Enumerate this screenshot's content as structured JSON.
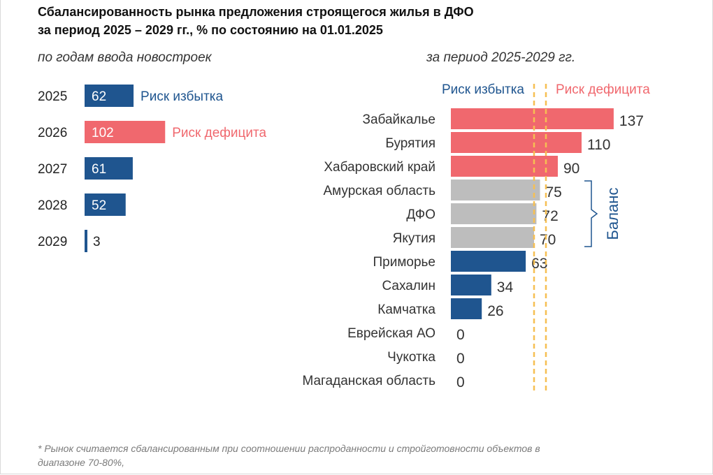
{
  "title_line1": "Сбалансированность рынка предложения строящегося жилья в ДФО",
  "title_line2": "за период 2025 – 2029 гг., % по состоянию на 01.01.2025",
  "left_subtitle": "по годам ввода новостроек",
  "right_subtitle": "за период 2025-2029 гг.",
  "footnote_line1": "* Рынок считается сбалансированным при соотношении распроданности и стройготовности объектов в",
  "footnote_line2": "диапазоне 70-80%,",
  "colors": {
    "surplus": "#1f558f",
    "deficit": "#f0686e",
    "balance": "#bdbdbd",
    "threshold": "#f6bf52"
  },
  "chart_data": [
    {
      "type": "bar",
      "orientation": "horizontal",
      "title": "по годам ввода новостроек",
      "categories": [
        "2025",
        "2026",
        "2027",
        "2028",
        "2029"
      ],
      "values": [
        62,
        102,
        61,
        52,
        3
      ],
      "status": [
        "surplus",
        "deficit",
        "surplus",
        "surplus",
        "surplus"
      ],
      "annotations": [
        {
          "category": "2025",
          "text": "Риск  избытка",
          "color": "#1f558f"
        },
        {
          "category": "2026",
          "text": "Риск дефицита",
          "color": "#f0686e"
        }
      ]
    },
    {
      "type": "bar",
      "orientation": "horizontal",
      "title": "за период 2025-2029 гг.",
      "categories": [
        "Забайкалье",
        "Бурятия",
        "Хабаровский край",
        "Амурская область",
        "ДФО",
        "Якутия",
        "Приморье",
        "Сахалин",
        "Камчатка",
        "Еврейская АО",
        "Чукотка",
        "Магаданская область"
      ],
      "values": [
        137,
        110,
        90,
        75,
        72,
        70,
        63,
        34,
        26,
        0,
        0,
        0
      ],
      "status": [
        "deficit",
        "deficit",
        "deficit",
        "balance",
        "balance",
        "balance",
        "surplus",
        "surplus",
        "surplus",
        "surplus",
        "surplus",
        "surplus"
      ],
      "thresholds": [
        70,
        80
      ],
      "threshold_labels": {
        "left": "Риск избытка",
        "right": "Риск дефицита"
      },
      "bracket_label": "Баланс"
    }
  ]
}
